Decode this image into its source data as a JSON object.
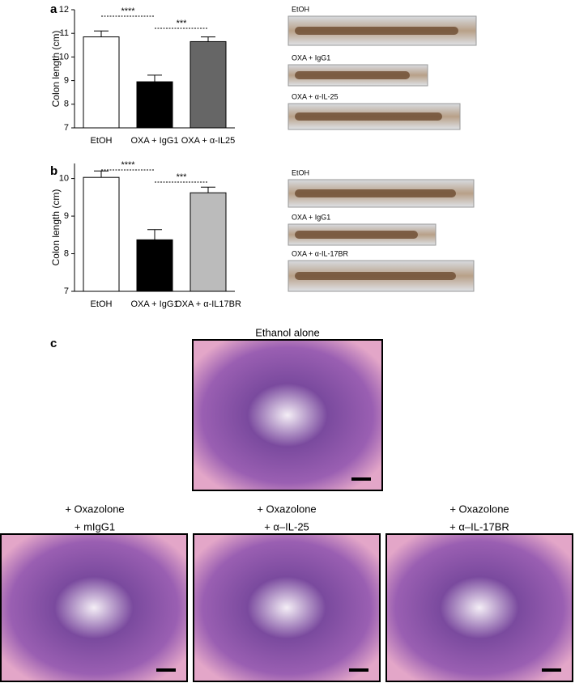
{
  "chart_data": [
    {
      "type": "bar",
      "panel": "a",
      "ylabel": "Colon length (cm)",
      "categories": [
        "EtOH",
        "OXA + IgG1",
        "OXA + α-IL25"
      ],
      "values": [
        10.85,
        8.95,
        10.65
      ],
      "errors": [
        0.25,
        0.28,
        0.2
      ],
      "colors": [
        "#ffffff",
        "#000000",
        "#666666"
      ],
      "ylim": [
        7,
        12
      ],
      "yticks": [
        7,
        8,
        9,
        10,
        11,
        12
      ],
      "annotations": [
        "****",
        "***"
      ]
    },
    {
      "type": "bar",
      "panel": "b",
      "ylabel": "Colon length (cm)",
      "categories": [
        "EtOH",
        "OXA + IgG1",
        "OXA + α-IL17BR"
      ],
      "values": [
        10.03,
        8.37,
        9.62
      ],
      "errors": [
        0.17,
        0.27,
        0.15
      ],
      "colors": [
        "#ffffff",
        "#000000",
        "#bbbbbb"
      ],
      "ylim": [
        7,
        10.4
      ],
      "yticks": [
        7,
        8,
        9,
        10
      ],
      "annotations": [
        "****",
        "***"
      ]
    }
  ],
  "photos": [
    [
      "EtOH",
      "OXA + IgG1",
      "OXA + α-IL-25"
    ],
    [
      "EtOH",
      "OXA + IgG1",
      "OXA + α-IL-17BR"
    ]
  ],
  "histology": {
    "panel": "c",
    "top": "Ethanol alone",
    "bottom": [
      [
        "+ Oxazolone",
        "+ mIgG1"
      ],
      [
        "+ Oxazolone",
        "+ α–IL-25"
      ],
      [
        "+ Oxazolone",
        "+ α–IL-17BR"
      ]
    ]
  }
}
